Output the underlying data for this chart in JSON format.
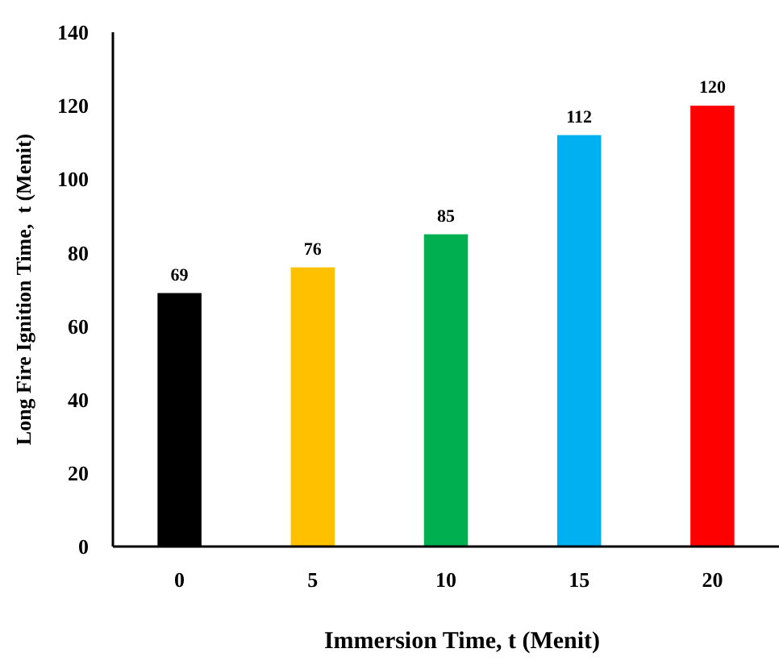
{
  "chart_data": {
    "type": "bar",
    "xlabel": "Immersion Time, t (Menit)",
    "ylabel": "Long Fire Ignition Time,  t (Menit)",
    "categories": [
      "0",
      "5",
      "10",
      "15",
      "20"
    ],
    "values": [
      69,
      76,
      85,
      112,
      120
    ],
    "colors": [
      "#000000",
      "#ffc000",
      "#00b050",
      "#00b0f0",
      "#ff0000"
    ],
    "ylim": [
      0,
      140
    ],
    "yticks": [
      0,
      20,
      40,
      60,
      80,
      100,
      120,
      140
    ],
    "data_labels": true
  }
}
